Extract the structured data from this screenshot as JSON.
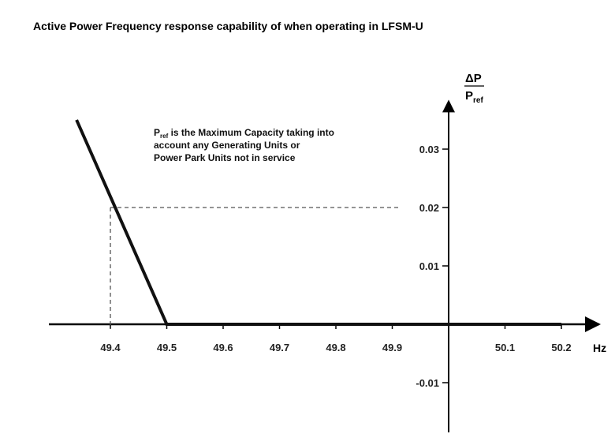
{
  "chart_data": {
    "type": "line",
    "title": "Active Power Frequency response capability of when operating in LFSM-U",
    "xlabel": "Hz",
    "ylabel": {
      "numerator": "ΔP",
      "denominator_main": "P",
      "denominator_sub": "ref"
    },
    "x_ticks": [
      "49.4",
      "49.5",
      "49.6",
      "49.7",
      "49.8",
      "49.9",
      "50.1",
      "50.2"
    ],
    "x_tick_values": [
      49.4,
      49.5,
      49.6,
      49.7,
      49.8,
      49.9,
      50.1,
      50.2
    ],
    "y_ticks": [
      "0.03",
      "0.02",
      "0.01",
      "-0.01"
    ],
    "y_tick_values": [
      0.03,
      0.02,
      0.01,
      -0.01
    ],
    "xlim": [
      49.3,
      50.25
    ],
    "ylim": [
      -0.018,
      0.037
    ],
    "y_axis_at_x": 50.0,
    "grid": false,
    "series": [
      {
        "x": [
          49.34,
          49.5,
          50.2
        ],
        "y": [
          0.035,
          0.0,
          0.0
        ]
      }
    ],
    "reference_point": {
      "x": 49.4,
      "y": 0.02
    },
    "annotation": {
      "sub_main": "P",
      "sub_script": "ref",
      "line1_rest": " is the Maximum Capacity taking into",
      "line2": "account any Generating Units or",
      "line3": "Power Park Units not in service"
    },
    "colors": {
      "axis": "#000000",
      "series": "#111111",
      "guide": "#555555"
    }
  }
}
